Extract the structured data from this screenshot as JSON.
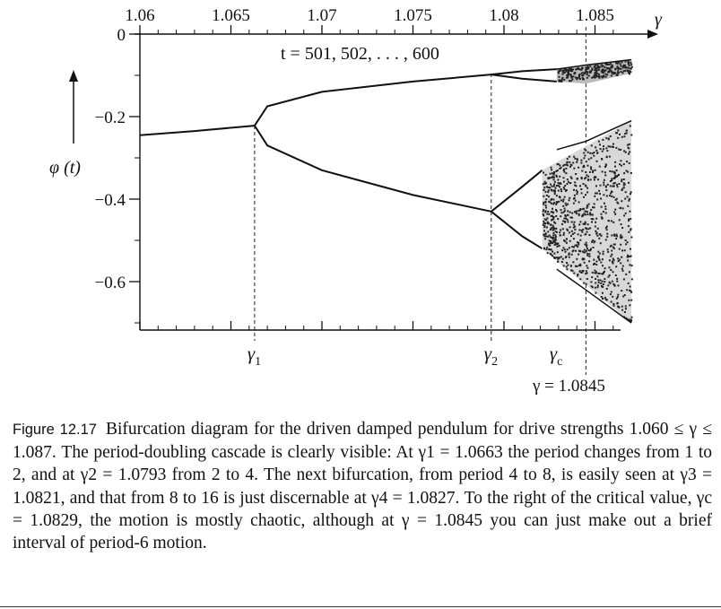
{
  "figure": {
    "x_axis": {
      "symbol": "γ",
      "ticks": [
        "1.06",
        "1.065",
        "1.07",
        "1.075",
        "1.08",
        "1.085"
      ],
      "values": [
        1.06,
        1.065,
        1.07,
        1.075,
        1.08,
        1.085
      ],
      "range": [
        1.06,
        1.087
      ]
    },
    "y_axis": {
      "label": "φ (t)",
      "ticks": [
        "0",
        "−0.2",
        "−0.4",
        "−0.6"
      ],
      "values": [
        0,
        -0.2,
        -0.4,
        -0.6
      ],
      "range": [
        -0.72,
        0
      ]
    },
    "annotation": "t = 501, 502, . . . , 600",
    "markers": [
      {
        "label": "γ",
        "sub": "1",
        "x": 1.0663
      },
      {
        "label": "γ",
        "sub": "2",
        "x": 1.0793
      },
      {
        "label": "γ",
        "sub": "c",
        "x": 1.0829
      }
    ],
    "special_line": {
      "x": 1.0845,
      "label": "γ = 1.0845"
    }
  },
  "chart_data": {
    "type": "scatter",
    "xlabel": "γ",
    "ylabel": "φ (t)",
    "xlim": [
      1.06,
      1.087
    ],
    "ylim": [
      -0.72,
      0
    ],
    "x_axis_position": "top",
    "grid": false,
    "series": [
      {
        "x": [
          1.06,
          1.063,
          1.0663
        ],
        "y": [
          -0.245,
          -0.235,
          -0.222
        ]
      },
      {
        "x": [
          1.0663,
          1.067,
          1.07,
          1.075,
          1.0793
        ],
        "y": [
          -0.222,
          -0.175,
          -0.14,
          -0.115,
          -0.098
        ]
      },
      {
        "x": [
          1.0663,
          1.067,
          1.07,
          1.075,
          1.0793
        ],
        "y": [
          -0.222,
          -0.27,
          -0.33,
          -0.39,
          -0.43
        ]
      },
      {
        "x": [
          1.0793,
          1.081,
          1.0829
        ],
        "y": [
          -0.098,
          -0.09,
          -0.085
        ]
      },
      {
        "x": [
          1.0793,
          1.081,
          1.0829
        ],
        "y": [
          -0.098,
          -0.108,
          -0.115
        ]
      },
      {
        "x": [
          1.0793,
          1.081,
          1.0821
        ],
        "y": [
          -0.43,
          -0.37,
          -0.33
        ]
      },
      {
        "x": [
          1.0793,
          1.081,
          1.0821
        ],
        "y": [
          -0.43,
          -0.49,
          -0.52
        ]
      },
      {
        "x": [
          1.0829,
          1.0845,
          1.087
        ],
        "y": [
          -0.085,
          -0.075,
          -0.062
        ]
      },
      {
        "x": [
          1.0829,
          1.0845,
          1.087
        ],
        "y": [
          -0.28,
          -0.26,
          -0.21
        ]
      },
      {
        "x": [
          1.0829,
          1.0845,
          1.087
        ],
        "y": [
          -0.57,
          -0.62,
          -0.7
        ]
      }
    ]
  },
  "caption": {
    "label": "Figure 12.17",
    "text": "Bifurcation diagram for the driven damped pendulum for drive strengths 1.060 ≤ γ ≤ 1.087. The period-doubling cascade is clearly visible: At γ1 = 1.0663 the period changes from 1 to 2, and at γ2 = 1.0793 from 2 to 4. The next bifurcation, from period 4 to 8, is easily seen at γ3 = 1.0821, and that from 8 to 16 is just discernable at γ4 = 1.0827. To the right of the critical value, γc = 1.0829, the motion is mostly chaotic, although at γ = 1.0845 you can just make out a brief interval of period-6 motion."
  }
}
